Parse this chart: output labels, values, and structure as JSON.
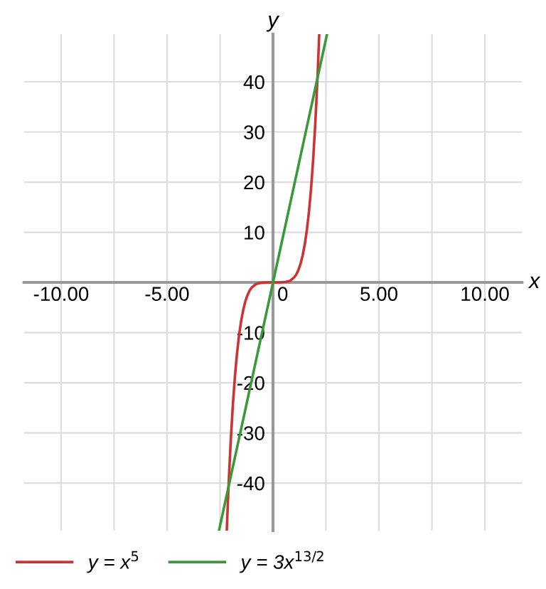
{
  "chart_data": {
    "type": "line",
    "xlabel": "x",
    "ylabel": "y",
    "xlim": [
      -11.75,
      11.75
    ],
    "ylim": [
      -49.5,
      49.5
    ],
    "xticks": [
      {
        "value": -10,
        "label": "-10.00"
      },
      {
        "value": -7.5,
        "label": null
      },
      {
        "value": -5,
        "label": "-5.00"
      },
      {
        "value": -2.5,
        "label": null
      },
      0,
      {
        "value": 2.5,
        "label": null
      },
      {
        "value": 5,
        "label": "5.00"
      },
      {
        "value": 7.5,
        "label": null
      },
      {
        "value": 10,
        "label": "10.00"
      }
    ],
    "yticks": [
      -40,
      -30,
      -20,
      -10,
      {
        "value": 0,
        "label": null
      },
      10,
      20,
      30,
      40
    ],
    "grid": true,
    "legend": "bottom left",
    "series": [
      {
        "name": "y = x$^{5}$",
        "color": "#cc3333",
        "x": [
          -2.18,
          -2.1,
          -2.0,
          -1.9,
          -1.8,
          -1.7,
          -1.6,
          -1.5,
          -1.4,
          -1.3,
          -1.2,
          -1.1,
          -1.0,
          -0.8,
          -0.6,
          -0.3,
          0,
          0.3,
          0.6,
          0.8,
          1.0,
          1.1,
          1.2,
          1.3,
          1.4,
          1.5,
          1.6,
          1.7,
          1.8,
          1.9,
          2.0,
          2.1,
          2.18
        ],
        "values": [
          -49.3,
          -40.8,
          -32,
          -24.8,
          -18.9,
          -14.2,
          -10.5,
          -7.6,
          -5.4,
          -3.7,
          -2.5,
          -1.6,
          -1.0,
          -0.3,
          -0.1,
          0,
          0,
          0,
          0.1,
          0.3,
          1.0,
          1.6,
          2.5,
          3.7,
          5.4,
          7.6,
          10.5,
          14.2,
          18.9,
          24.8,
          32,
          40.8,
          49.3
        ]
      },
      {
        "name": "y = 3x$^{13/2}$",
        "color": "#3a9a3a",
        "x": [
          -2.55,
          0,
          2.55
        ],
        "values": [
          -49.5,
          0,
          49.5
        ]
      }
    ]
  }
}
